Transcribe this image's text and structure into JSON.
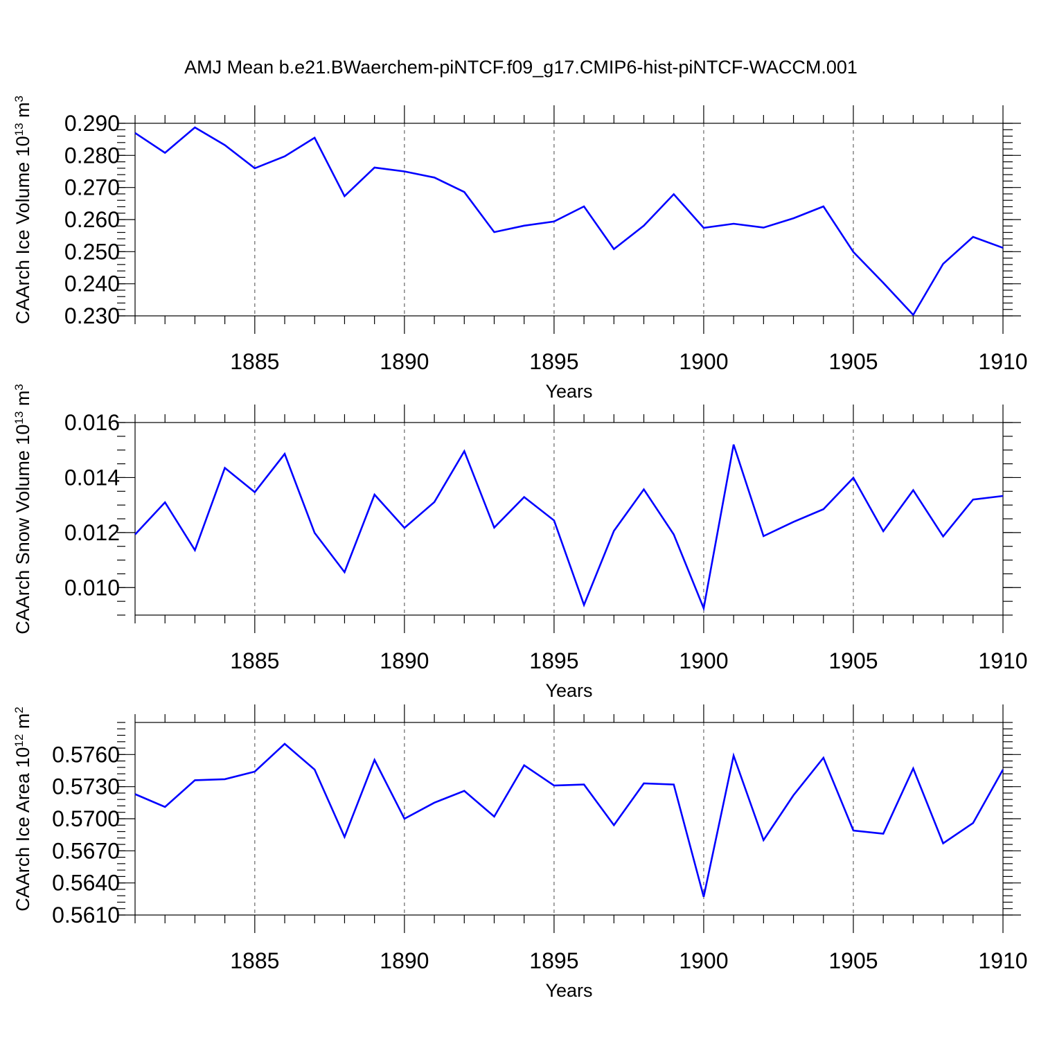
{
  "title": "AMJ Mean b.e21.BWaerchem-piNTCF.f09_g17.CMIP6-hist-piNTCF-WACCM.001",
  "colors": {
    "line": "#0000ff",
    "axis": "#000000",
    "grid": "#666666"
  },
  "chart_data": [
    {
      "type": "line",
      "title": "AMJ Mean b.e21.BWaerchem-piNTCF.f09_g17.CMIP6-hist-piNTCF-WACCM.001",
      "ylabel": "CAArch Ice Volume 10",
      "ylabel_exp": "13",
      "ylabel_unit": " m",
      "ylabel_unit_exp": "3",
      "xlabel": "Years",
      "xlim": [
        1881,
        1910
      ],
      "ylim": [
        0.23,
        0.29
      ],
      "yticks": [
        0.23,
        0.24,
        0.25,
        0.26,
        0.27,
        0.28,
        0.29
      ],
      "ytick_labels": [
        "0.230",
        "0.240",
        "0.250",
        "0.260",
        "0.270",
        "0.280",
        "0.290"
      ],
      "yminor_step": 0.002,
      "xticks": [
        1885,
        1890,
        1895,
        1900,
        1905,
        1910
      ],
      "xtick_labels": [
        "1885",
        "1890",
        "1895",
        "1900",
        "1905",
        "1910"
      ],
      "x": [
        1881,
        1882,
        1883,
        1884,
        1885,
        1886,
        1887,
        1888,
        1889,
        1890,
        1891,
        1892,
        1893,
        1894,
        1895,
        1896,
        1897,
        1898,
        1899,
        1900,
        1901,
        1902,
        1903,
        1904,
        1905,
        1906,
        1907,
        1908,
        1909,
        1910
      ],
      "values": [
        0.287,
        0.2808,
        0.2887,
        0.2832,
        0.276,
        0.2797,
        0.2855,
        0.2673,
        0.2762,
        0.275,
        0.2731,
        0.2686,
        0.2561,
        0.2581,
        0.2594,
        0.2641,
        0.2508,
        0.2581,
        0.2679,
        0.2574,
        0.2587,
        0.2575,
        0.2604,
        0.2641,
        0.2499,
        0.2403,
        0.2303,
        0.2462,
        0.2546,
        0.2512
      ]
    },
    {
      "type": "line",
      "ylabel": "CAArch Snow Volume 10",
      "ylabel_exp": "13",
      "ylabel_unit": " m",
      "ylabel_unit_exp": "3",
      "xlabel": "Years",
      "xlim": [
        1881,
        1910
      ],
      "ylim": [
        0.009,
        0.016
      ],
      "yticks": [
        0.01,
        0.012,
        0.014,
        0.016
      ],
      "ytick_labels": [
        "0.010",
        "0.012",
        "0.014",
        "0.016"
      ],
      "yminor_step": 0.0005,
      "xticks": [
        1885,
        1890,
        1895,
        1900,
        1905,
        1910
      ],
      "xtick_labels": [
        "1885",
        "1890",
        "1895",
        "1900",
        "1905",
        "1910"
      ],
      "x": [
        1881,
        1882,
        1883,
        1884,
        1885,
        1886,
        1887,
        1888,
        1889,
        1890,
        1891,
        1892,
        1893,
        1894,
        1895,
        1896,
        1897,
        1898,
        1899,
        1900,
        1901,
        1902,
        1903,
        1904,
        1905,
        1906,
        1907,
        1908,
        1909,
        1910
      ],
      "values": [
        0.01193,
        0.0131,
        0.01136,
        0.01435,
        0.01347,
        0.01486,
        0.01199,
        0.01056,
        0.01338,
        0.01217,
        0.01311,
        0.01496,
        0.01218,
        0.01329,
        0.01244,
        0.00937,
        0.01206,
        0.01357,
        0.01193,
        0.00925,
        0.0152,
        0.01187,
        0.01239,
        0.01285,
        0.01399,
        0.01205,
        0.01354,
        0.01186,
        0.0132,
        0.01333
      ]
    },
    {
      "type": "line",
      "ylabel": "CAArch Ice Area 10",
      "ylabel_exp": "12",
      "ylabel_unit": " m",
      "ylabel_unit_exp": "2",
      "xlabel": "Years",
      "xlim": [
        1881,
        1910
      ],
      "ylim": [
        0.561,
        0.579
      ],
      "yticks": [
        0.561,
        0.564,
        0.567,
        0.57,
        0.573,
        0.576
      ],
      "ytick_labels": [
        "0.5610",
        "0.5640",
        "0.5670",
        "0.5700",
        "0.5730",
        "0.5760"
      ],
      "yminor_step": 0.0006,
      "xticks": [
        1885,
        1890,
        1895,
        1900,
        1905,
        1910
      ],
      "xtick_labels": [
        "1885",
        "1890",
        "1895",
        "1900",
        "1905",
        "1910"
      ],
      "x": [
        1881,
        1882,
        1883,
        1884,
        1885,
        1886,
        1887,
        1888,
        1889,
        1890,
        1891,
        1892,
        1893,
        1894,
        1895,
        1896,
        1897,
        1898,
        1899,
        1900,
        1901,
        1902,
        1903,
        1904,
        1905,
        1906,
        1907,
        1908,
        1909,
        1910
      ],
      "values": [
        0.5723,
        0.5711,
        0.5736,
        0.5737,
        0.5744,
        0.577,
        0.5746,
        0.5683,
        0.5755,
        0.57,
        0.5715,
        0.5726,
        0.5702,
        0.575,
        0.5731,
        0.5732,
        0.5694,
        0.5733,
        0.5732,
        0.5627,
        0.5759,
        0.568,
        0.5722,
        0.5757,
        0.5689,
        0.5686,
        0.5747,
        0.5677,
        0.5696,
        0.5746
      ]
    }
  ]
}
